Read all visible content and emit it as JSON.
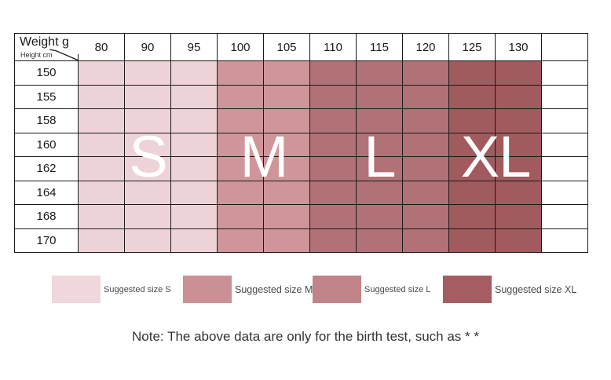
{
  "table": {
    "corner": {
      "top_label": "Weight g",
      "bottom_label": "Height cm"
    },
    "columns": [
      "80",
      "90",
      "95",
      "100",
      "105",
      "110",
      "115",
      "120",
      "125",
      "130",
      ""
    ],
    "rows": [
      "150",
      "155",
      "158",
      "160",
      "162",
      "164",
      "168",
      "170"
    ],
    "column_region": [
      "S",
      "S",
      "S",
      "M",
      "M",
      "L",
      "L",
      "L",
      "XL",
      "XL",
      ""
    ]
  },
  "size_regions": [
    {
      "label": "S",
      "color": "#edd3d8",
      "col_start": 0,
      "col_end": 2
    },
    {
      "label": "M",
      "color": "#cf959a",
      "col_start": 3,
      "col_end": 4
    },
    {
      "label": "L",
      "color": "#b17176",
      "col_start": 5,
      "col_end": 7
    },
    {
      "label": "XL",
      "color": "#a15a5e",
      "col_start": 8,
      "col_end": 9
    }
  ],
  "legend": [
    {
      "label": "Suggested size S",
      "color": "#f0d7db"
    },
    {
      "label": "Suggested size M",
      "color": "#cb9094"
    },
    {
      "label": "Suggested size L",
      "color": "#c08488"
    },
    {
      "label": "Suggested size XL",
      "color": "#a55d61"
    }
  ],
  "note": "Note: The above data are only for the birth test, such as * *",
  "colors": {
    "grid": "#1a1a1a",
    "letter": "#ffffff",
    "background": "#ffffff"
  },
  "chart_data": {
    "type": "table",
    "title": "",
    "x_axis_label": "Weight g",
    "y_axis_label": "Height cm",
    "columns_weight_g": [
      80,
      90,
      95,
      100,
      105,
      110,
      115,
      120,
      125,
      130
    ],
    "rows_height_cm": [
      150,
      155,
      158,
      160,
      162,
      164,
      168,
      170
    ],
    "cell_size_by_weight_column": {
      "80": "S",
      "90": "S",
      "95": "S",
      "100": "M",
      "105": "M",
      "110": "L",
      "115": "L",
      "120": "L",
      "125": "XL",
      "130": "XL"
    },
    "legend_entries": [
      "Suggested size S",
      "Suggested size M",
      "Suggested size L",
      "Suggested size XL"
    ],
    "legend_position": "bottom",
    "annotations": [
      "S",
      "M",
      "L",
      "XL"
    ],
    "note": "Note: The above data are only for the birth test, such as * *"
  }
}
